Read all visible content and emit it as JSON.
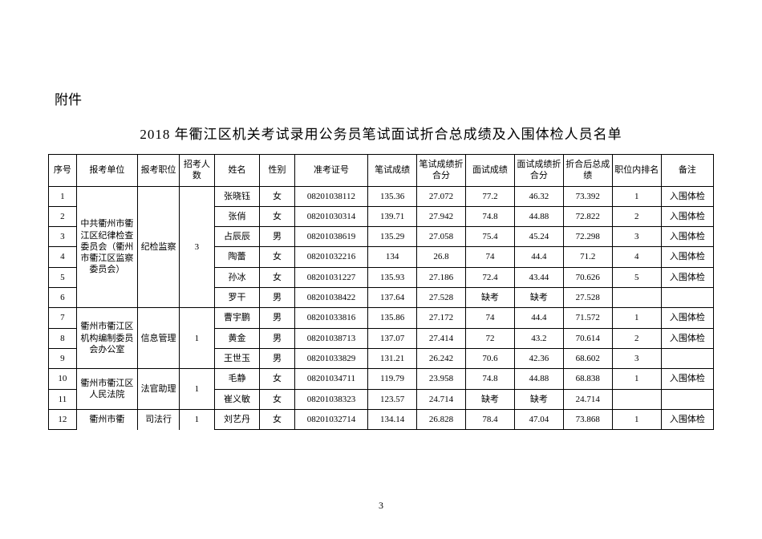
{
  "attachment_label": "附件",
  "title": "2018 年衢江区机关考试录用公务员笔试面试折合总成绩及入围体检人员名单",
  "page_number": "3",
  "columns": {
    "seq": "序号",
    "unit": "报考单位",
    "position": "报考职位",
    "recruit_num": "招考人数",
    "name": "姓名",
    "gender": "性别",
    "ticket": "准考证号",
    "written_score": "笔试成绩",
    "written_conv": "笔试成绩折合分",
    "interview_score": "面试成绩",
    "interview_conv": "面试成绩折合分",
    "total": "折合后总成绩",
    "rank": "职位内排名",
    "note": "备注"
  },
  "groups": [
    {
      "unit": "中共衢州市衢江区纪律检查委员会（衢州市衢江区监察委员会）",
      "position": "纪检监察",
      "recruit_num": "3",
      "rows": [
        {
          "seq": "1",
          "name": "张晓钰",
          "gender": "女",
          "ticket": "08201038112",
          "ws": "135.36",
          "wc": "27.072",
          "is": "77.2",
          "ic": "46.32",
          "total": "73.392",
          "rank": "1",
          "note": "入围体检"
        },
        {
          "seq": "2",
          "name": "张俏",
          "gender": "女",
          "ticket": "08201030314",
          "ws": "139.71",
          "wc": "27.942",
          "is": "74.8",
          "ic": "44.88",
          "total": "72.822",
          "rank": "2",
          "note": "入围体检"
        },
        {
          "seq": "3",
          "name": "占辰辰",
          "gender": "男",
          "ticket": "08201038619",
          "ws": "135.29",
          "wc": "27.058",
          "is": "75.4",
          "ic": "45.24",
          "total": "72.298",
          "rank": "3",
          "note": "入围体检"
        },
        {
          "seq": "4",
          "name": "陶蕾",
          "gender": "女",
          "ticket": "08201032216",
          "ws": "134",
          "wc": "26.8",
          "is": "74",
          "ic": "44.4",
          "total": "71.2",
          "rank": "4",
          "note": "入围体检"
        },
        {
          "seq": "5",
          "name": "孙冰",
          "gender": "女",
          "ticket": "08201031227",
          "ws": "135.93",
          "wc": "27.186",
          "is": "72.4",
          "ic": "43.44",
          "total": "70.626",
          "rank": "5",
          "note": "入围体检"
        },
        {
          "seq": "6",
          "name": "罗干",
          "gender": "男",
          "ticket": "08201038422",
          "ws": "137.64",
          "wc": "27.528",
          "is": "缺考",
          "ic": "缺考",
          "total": "27.528",
          "rank": "",
          "note": ""
        }
      ]
    },
    {
      "unit": "衢州市衢江区机构编制委员会办公室",
      "position": "信息管理",
      "recruit_num": "1",
      "rows": [
        {
          "seq": "7",
          "name": "曹宇鹏",
          "gender": "男",
          "ticket": "08201033816",
          "ws": "135.86",
          "wc": "27.172",
          "is": "74",
          "ic": "44.4",
          "total": "71.572",
          "rank": "1",
          "note": "入围体检"
        },
        {
          "seq": "8",
          "name": "黄金",
          "gender": "男",
          "ticket": "08201038713",
          "ws": "137.07",
          "wc": "27.414",
          "is": "72",
          "ic": "43.2",
          "total": "70.614",
          "rank": "2",
          "note": "入围体检"
        },
        {
          "seq": "9",
          "name": "王世玉",
          "gender": "男",
          "ticket": "08201033829",
          "ws": "131.21",
          "wc": "26.242",
          "is": "70.6",
          "ic": "42.36",
          "total": "68.602",
          "rank": "3",
          "note": ""
        }
      ]
    },
    {
      "unit": "衢州市衢江区人民法院",
      "position": "法官助理",
      "recruit_num": "1",
      "rows": [
        {
          "seq": "10",
          "name": "毛静",
          "gender": "女",
          "ticket": "08201034711",
          "ws": "119.79",
          "wc": "23.958",
          "is": "74.8",
          "ic": "44.88",
          "total": "68.838",
          "rank": "1",
          "note": "入围体检"
        },
        {
          "seq": "11",
          "name": "崔义敏",
          "gender": "女",
          "ticket": "08201038323",
          "ws": "123.57",
          "wc": "24.714",
          "is": "缺考",
          "ic": "缺考",
          "total": "24.714",
          "rank": "",
          "note": ""
        }
      ]
    },
    {
      "unit": "衢州市衢",
      "position": "司法行",
      "recruit_num": "1",
      "unit_open_bottom": true,
      "rows": [
        {
          "seq": "12",
          "name": "刘艺丹",
          "gender": "女",
          "ticket": "08201032714",
          "ws": "134.14",
          "wc": "26.828",
          "is": "78.4",
          "ic": "47.04",
          "total": "73.868",
          "rank": "1",
          "note": "入围体检"
        }
      ]
    }
  ]
}
